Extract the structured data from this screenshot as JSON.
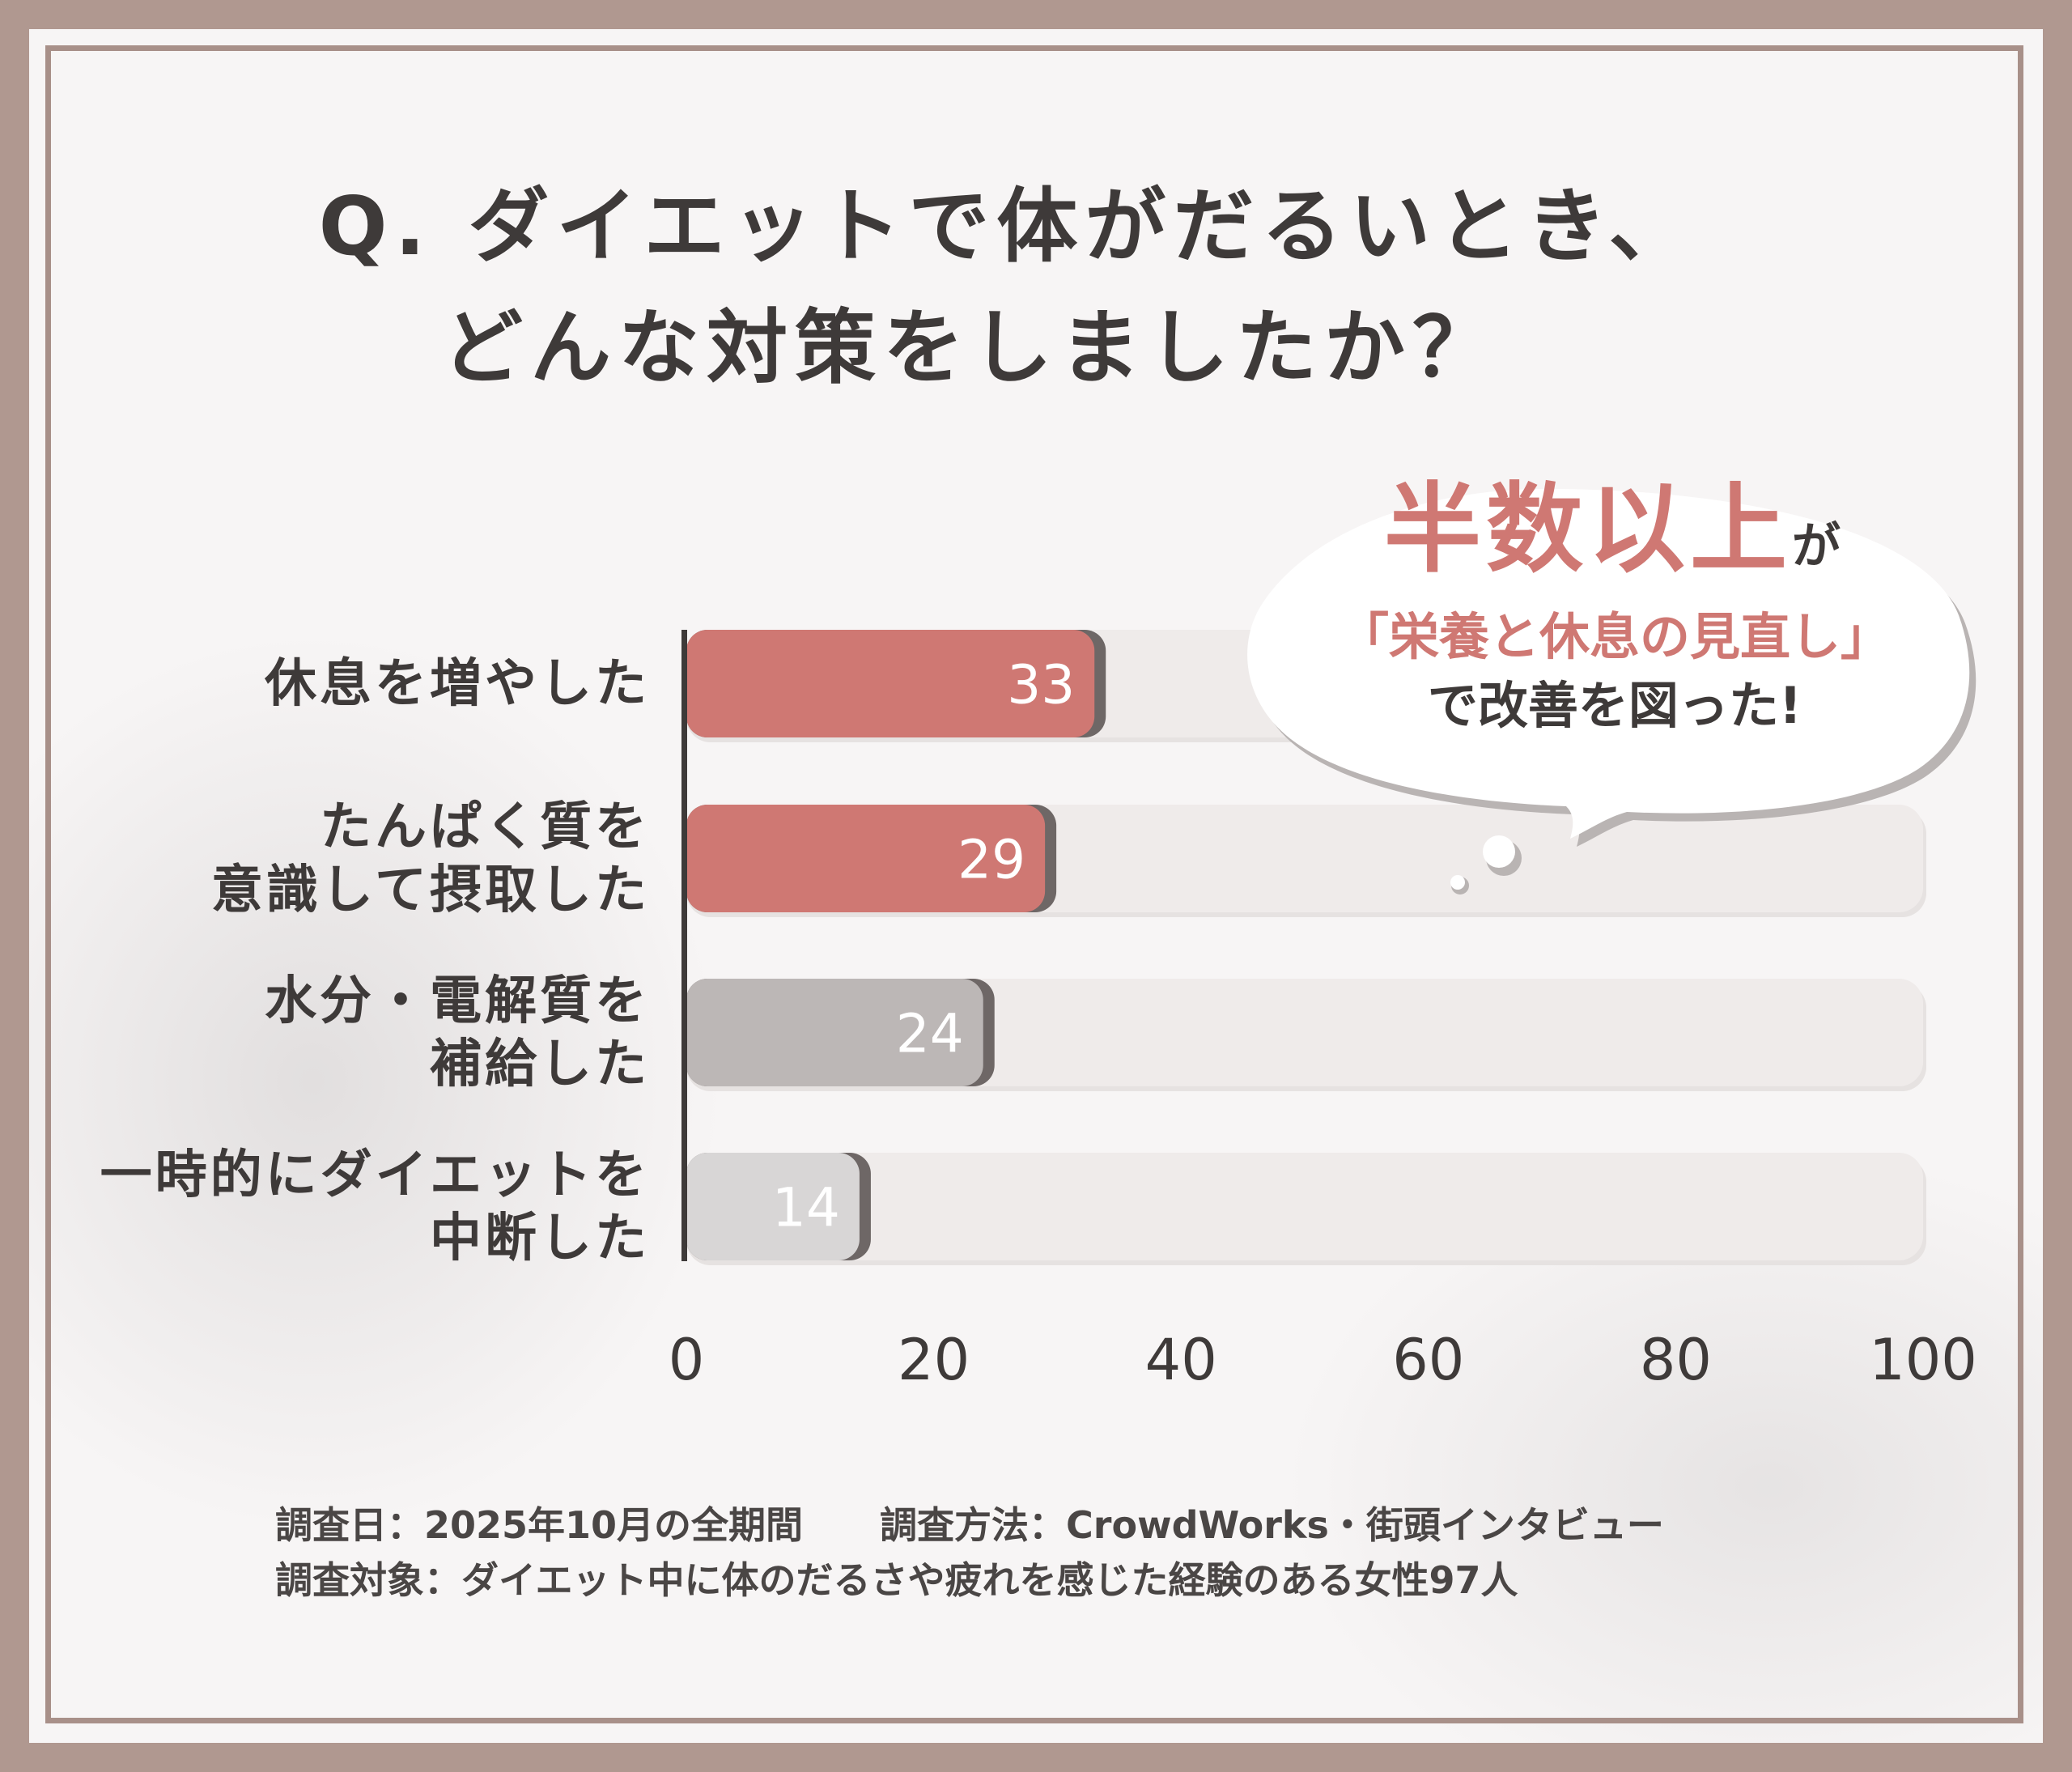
{
  "title": {
    "line1": "Q. ダイエットで体がだるいとき、",
    "line2": "どんな対策をしましたか？"
  },
  "callout": {
    "highlight": "半数以上",
    "particle": "が",
    "line2": "「栄養と休息の見直し」",
    "line3": "で改善を図った!"
  },
  "chart_data": {
    "type": "bar",
    "orientation": "horizontal",
    "categories": [
      "休息を増やした",
      "たんぱく質を意識して摂取した",
      "水分・電解質を補給した",
      "一時的にダイエットを中断した"
    ],
    "category_lines": [
      [
        "休息を増やした"
      ],
      [
        "たんぱく質を",
        "意識して摂取した"
      ],
      [
        "水分・電解質を",
        "補給した"
      ],
      [
        "一時的にダイエットを",
        "中断した"
      ]
    ],
    "values": [
      33,
      29,
      24,
      14
    ],
    "bar_colors": [
      "#cf7873",
      "#cf7873",
      "#bcb7b6",
      "#d8d6d6"
    ],
    "xlim": [
      0,
      100
    ],
    "xticks": [
      "0",
      "20",
      "40",
      "60",
      "80",
      "100"
    ],
    "grid": false
  },
  "footer": {
    "date": "調査日：2025年10月の全期間",
    "method": "調査方法：CrowdWorks・街頭インタビュー",
    "target": "調査対象：ダイエット中に体のだるさや疲れを感じた経験のある女性97人"
  }
}
